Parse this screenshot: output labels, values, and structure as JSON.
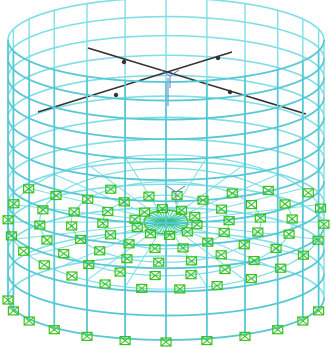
{
  "view": {
    "background_color": "#ffffff",
    "frame_color": "#7fdfe6",
    "frame_color_dark": "#58c9d3",
    "support_color": "#3bc21a",
    "axis_line_color": "#333333",
    "triad_color": "#6a78c8"
  },
  "structure": {
    "type": "cylindrical-tank-3d-frame",
    "wall_rings": 13,
    "wall_columns": 24,
    "floor_rings": 5,
    "floor_spokes": 24
  },
  "icons": {
    "support": "fixed-support-icon",
    "triad": "local-axes-triad-icon"
  }
}
